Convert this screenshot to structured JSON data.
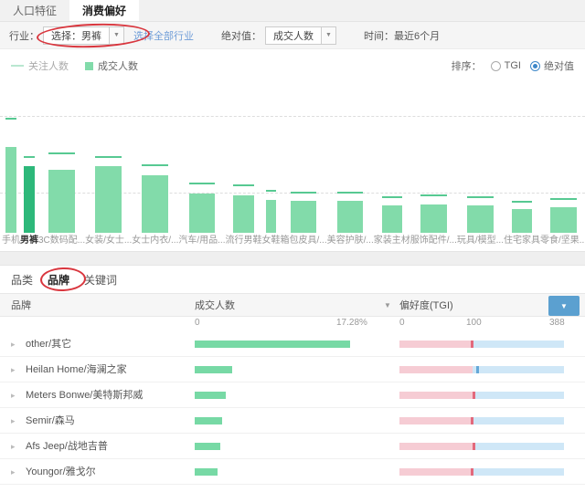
{
  "top_tabs": [
    {
      "label": "人口特征",
      "active": false
    },
    {
      "label": "消费偏好",
      "active": true
    }
  ],
  "filters": {
    "industry_label": "行业：",
    "industry_value": "选择：男裤",
    "all_industries_link": "选择全部行业",
    "metric_label": "绝对值：",
    "metric_value": "成交人数",
    "time_label": "时间：最近6个月"
  },
  "chart": {
    "legend": [
      {
        "label": "关注人数",
        "marker": "dash"
      },
      {
        "label": "成交人数",
        "marker": "square"
      }
    ],
    "sort_label": "排序：",
    "sort_options": [
      {
        "label": "TGI",
        "selected": false
      },
      {
        "label": "绝对值",
        "selected": true
      }
    ],
    "colors": {
      "bar": "#82dbaa",
      "bar_selected": "#2db87a",
      "marker": "#57c992"
    }
  },
  "chart_data": {
    "type": "bar",
    "title": "",
    "categories": [
      "手机",
      "男裤",
      "3C数码配...",
      "女装/女士...",
      "女士内衣/...",
      "汽车/用品...",
      "流行男鞋",
      "女鞋",
      "箱包皮具/...",
      "美容护肤/...",
      "家装主材",
      "服饰配件/...",
      "玩具/模型...",
      "住宅家具",
      "零食/坚果..."
    ],
    "series": [
      {
        "name": "关注人数",
        "style": "dash-marker",
        "values": [
          75,
          50,
          52,
          50,
          44,
          32,
          31,
          27,
          26,
          26,
          23,
          24,
          23,
          20,
          22
        ]
      },
      {
        "name": "成交人数",
        "style": "bar",
        "values": [
          57,
          44,
          42,
          44,
          38,
          26,
          25,
          22,
          21,
          21,
          18,
          19,
          18,
          16,
          17
        ]
      }
    ],
    "selected_index": 1,
    "xlabel": "",
    "ylabel": "",
    "ylim": [
      0,
      100
    ],
    "note": "relative heights in percent of plot area; no y-axis tick labels visible in source"
  },
  "section_tabs": [
    {
      "label": "品类",
      "active": false
    },
    {
      "label": "品牌",
      "active": true
    },
    {
      "label": "关键词",
      "active": false
    }
  ],
  "table": {
    "columns": [
      "品牌",
      "成交人数",
      "偏好度(TGI)"
    ],
    "value_scale": {
      "min": "0",
      "max": "17.28%",
      "max_value": 17.28
    },
    "tgi_scale": {
      "min": "0",
      "mid": "100",
      "max": "388"
    },
    "rows": [
      {
        "name": "other/其它",
        "value": 17.28,
        "tgi": 97,
        "tgi_color": "red"
      },
      {
        "name": "Heilan Home/海澜之家",
        "value": 4.2,
        "tgi": 112,
        "tgi_color": "blue"
      },
      {
        "name": "Meters Bonwe/美特斯邦威",
        "value": 3.5,
        "tgi": 100,
        "tgi_color": "red"
      },
      {
        "name": "Semir/森马",
        "value": 3.0,
        "tgi": 97,
        "tgi_color": "red"
      },
      {
        "name": "Afs Jeep/战地吉普",
        "value": 2.8,
        "tgi": 100,
        "tgi_color": "red"
      },
      {
        "name": "Youngor/雅戈尔",
        "value": 2.5,
        "tgi": 98,
        "tgi_color": "red"
      }
    ]
  }
}
